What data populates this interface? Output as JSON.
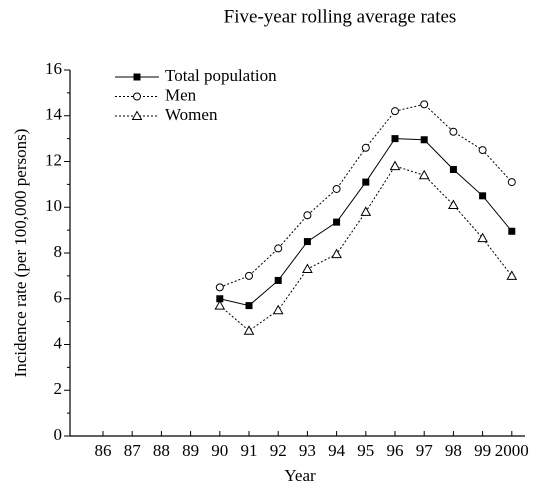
{
  "chart_data": {
    "type": "line",
    "title": "Five-year rolling average rates",
    "xlabel": "Year",
    "ylabel": "Incidence rate (per 100,000 persons)",
    "categories": [
      "86",
      "87",
      "88",
      "89",
      "90",
      "91",
      "92",
      "93",
      "94",
      "95",
      "96",
      "97",
      "98",
      "99",
      "2000"
    ],
    "series": [
      {
        "name": "Total population",
        "color": "#000000",
        "marker": "square",
        "line_style": "solid",
        "values": [
          null,
          null,
          null,
          null,
          6.0,
          5.7,
          6.8,
          8.5,
          9.35,
          11.1,
          13.0,
          12.95,
          11.65,
          10.5,
          8.95
        ]
      },
      {
        "name": "Men",
        "color": "#000000",
        "marker": "circle",
        "line_style": "dotted",
        "values": [
          null,
          null,
          null,
          null,
          6.5,
          7.0,
          8.2,
          9.65,
          10.8,
          12.6,
          14.2,
          14.5,
          13.3,
          12.5,
          11.1
        ]
      },
      {
        "name": "Women",
        "color": "#000000",
        "marker": "triangle",
        "line_style": "dotted",
        "values": [
          null,
          null,
          null,
          null,
          5.7,
          4.6,
          5.5,
          7.3,
          7.95,
          9.8,
          11.8,
          11.4,
          10.1,
          8.65,
          7.0
        ]
      }
    ],
    "ylim": [
      0,
      16
    ],
    "yticks": [
      0,
      2,
      4,
      6,
      8,
      10,
      12,
      14,
      16
    ],
    "yminor_ticks": [
      1,
      3,
      5,
      7,
      9,
      11,
      13,
      15
    ],
    "legend": "upper left",
    "grid": false
  }
}
